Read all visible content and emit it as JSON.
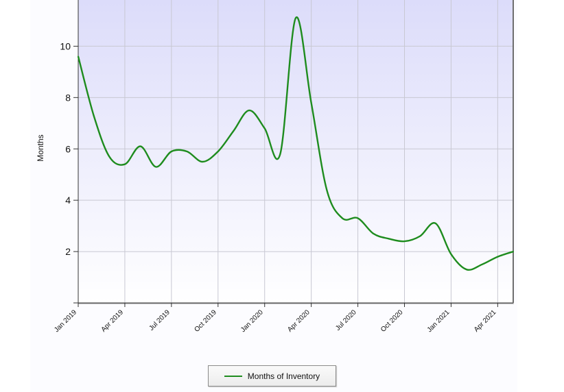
{
  "chart_data": {
    "type": "line",
    "title": "",
    "xlabel": "",
    "ylabel": "Months",
    "ylim": [
      0,
      11.8
    ],
    "yticks": [
      2,
      4,
      6,
      8,
      10
    ],
    "ytick_labels": [
      "2",
      "4",
      "6",
      "8",
      "10"
    ],
    "xlim": [
      "2019-01",
      "2021-05"
    ],
    "xtick_labels": [
      "Jan 2019",
      "Apr 2019",
      "Jul 2019",
      "Oct 2019",
      "Jan 2020",
      "Apr 2020",
      "Jul 2020",
      "Oct 2020",
      "Jan 2021",
      "Apr 2021"
    ],
    "xtick_months": [
      "2019-01",
      "2019-04",
      "2019-07",
      "2019-10",
      "2020-01",
      "2020-04",
      "2020-07",
      "2020-10",
      "2021-01",
      "2021-04"
    ],
    "grid": true,
    "legend_position": "bottom-center",
    "series": [
      {
        "name": "Months of Inventory",
        "color": "#1e8c1e",
        "points": [
          [
            "2019-01",
            9.6
          ],
          [
            "2019-02",
            7.3
          ],
          [
            "2019-03",
            5.7
          ],
          [
            "2019-04",
            5.4
          ],
          [
            "2019-05",
            6.1
          ],
          [
            "2019-06",
            5.3
          ],
          [
            "2019-07",
            5.9
          ],
          [
            "2019-08",
            5.9
          ],
          [
            "2019-09",
            5.5
          ],
          [
            "2019-10",
            5.9
          ],
          [
            "2019-11",
            6.7
          ],
          [
            "2019-12",
            7.5
          ],
          [
            "2020-01",
            6.8
          ],
          [
            "2020-02",
            5.8
          ],
          [
            "2020-03",
            11.1
          ],
          [
            "2020-04",
            7.8
          ],
          [
            "2020-05",
            4.4
          ],
          [
            "2020-06",
            3.3
          ],
          [
            "2020-07",
            3.3
          ],
          [
            "2020-08",
            2.7
          ],
          [
            "2020-09",
            2.5
          ],
          [
            "2020-10",
            2.4
          ],
          [
            "2020-11",
            2.6
          ],
          [
            "2020-12",
            3.1
          ],
          [
            "2021-01",
            1.9
          ],
          [
            "2021-02",
            1.3
          ],
          [
            "2021-03",
            1.5
          ],
          [
            "2021-04",
            1.8
          ],
          [
            "2021-05",
            2.0
          ]
        ]
      }
    ]
  }
}
